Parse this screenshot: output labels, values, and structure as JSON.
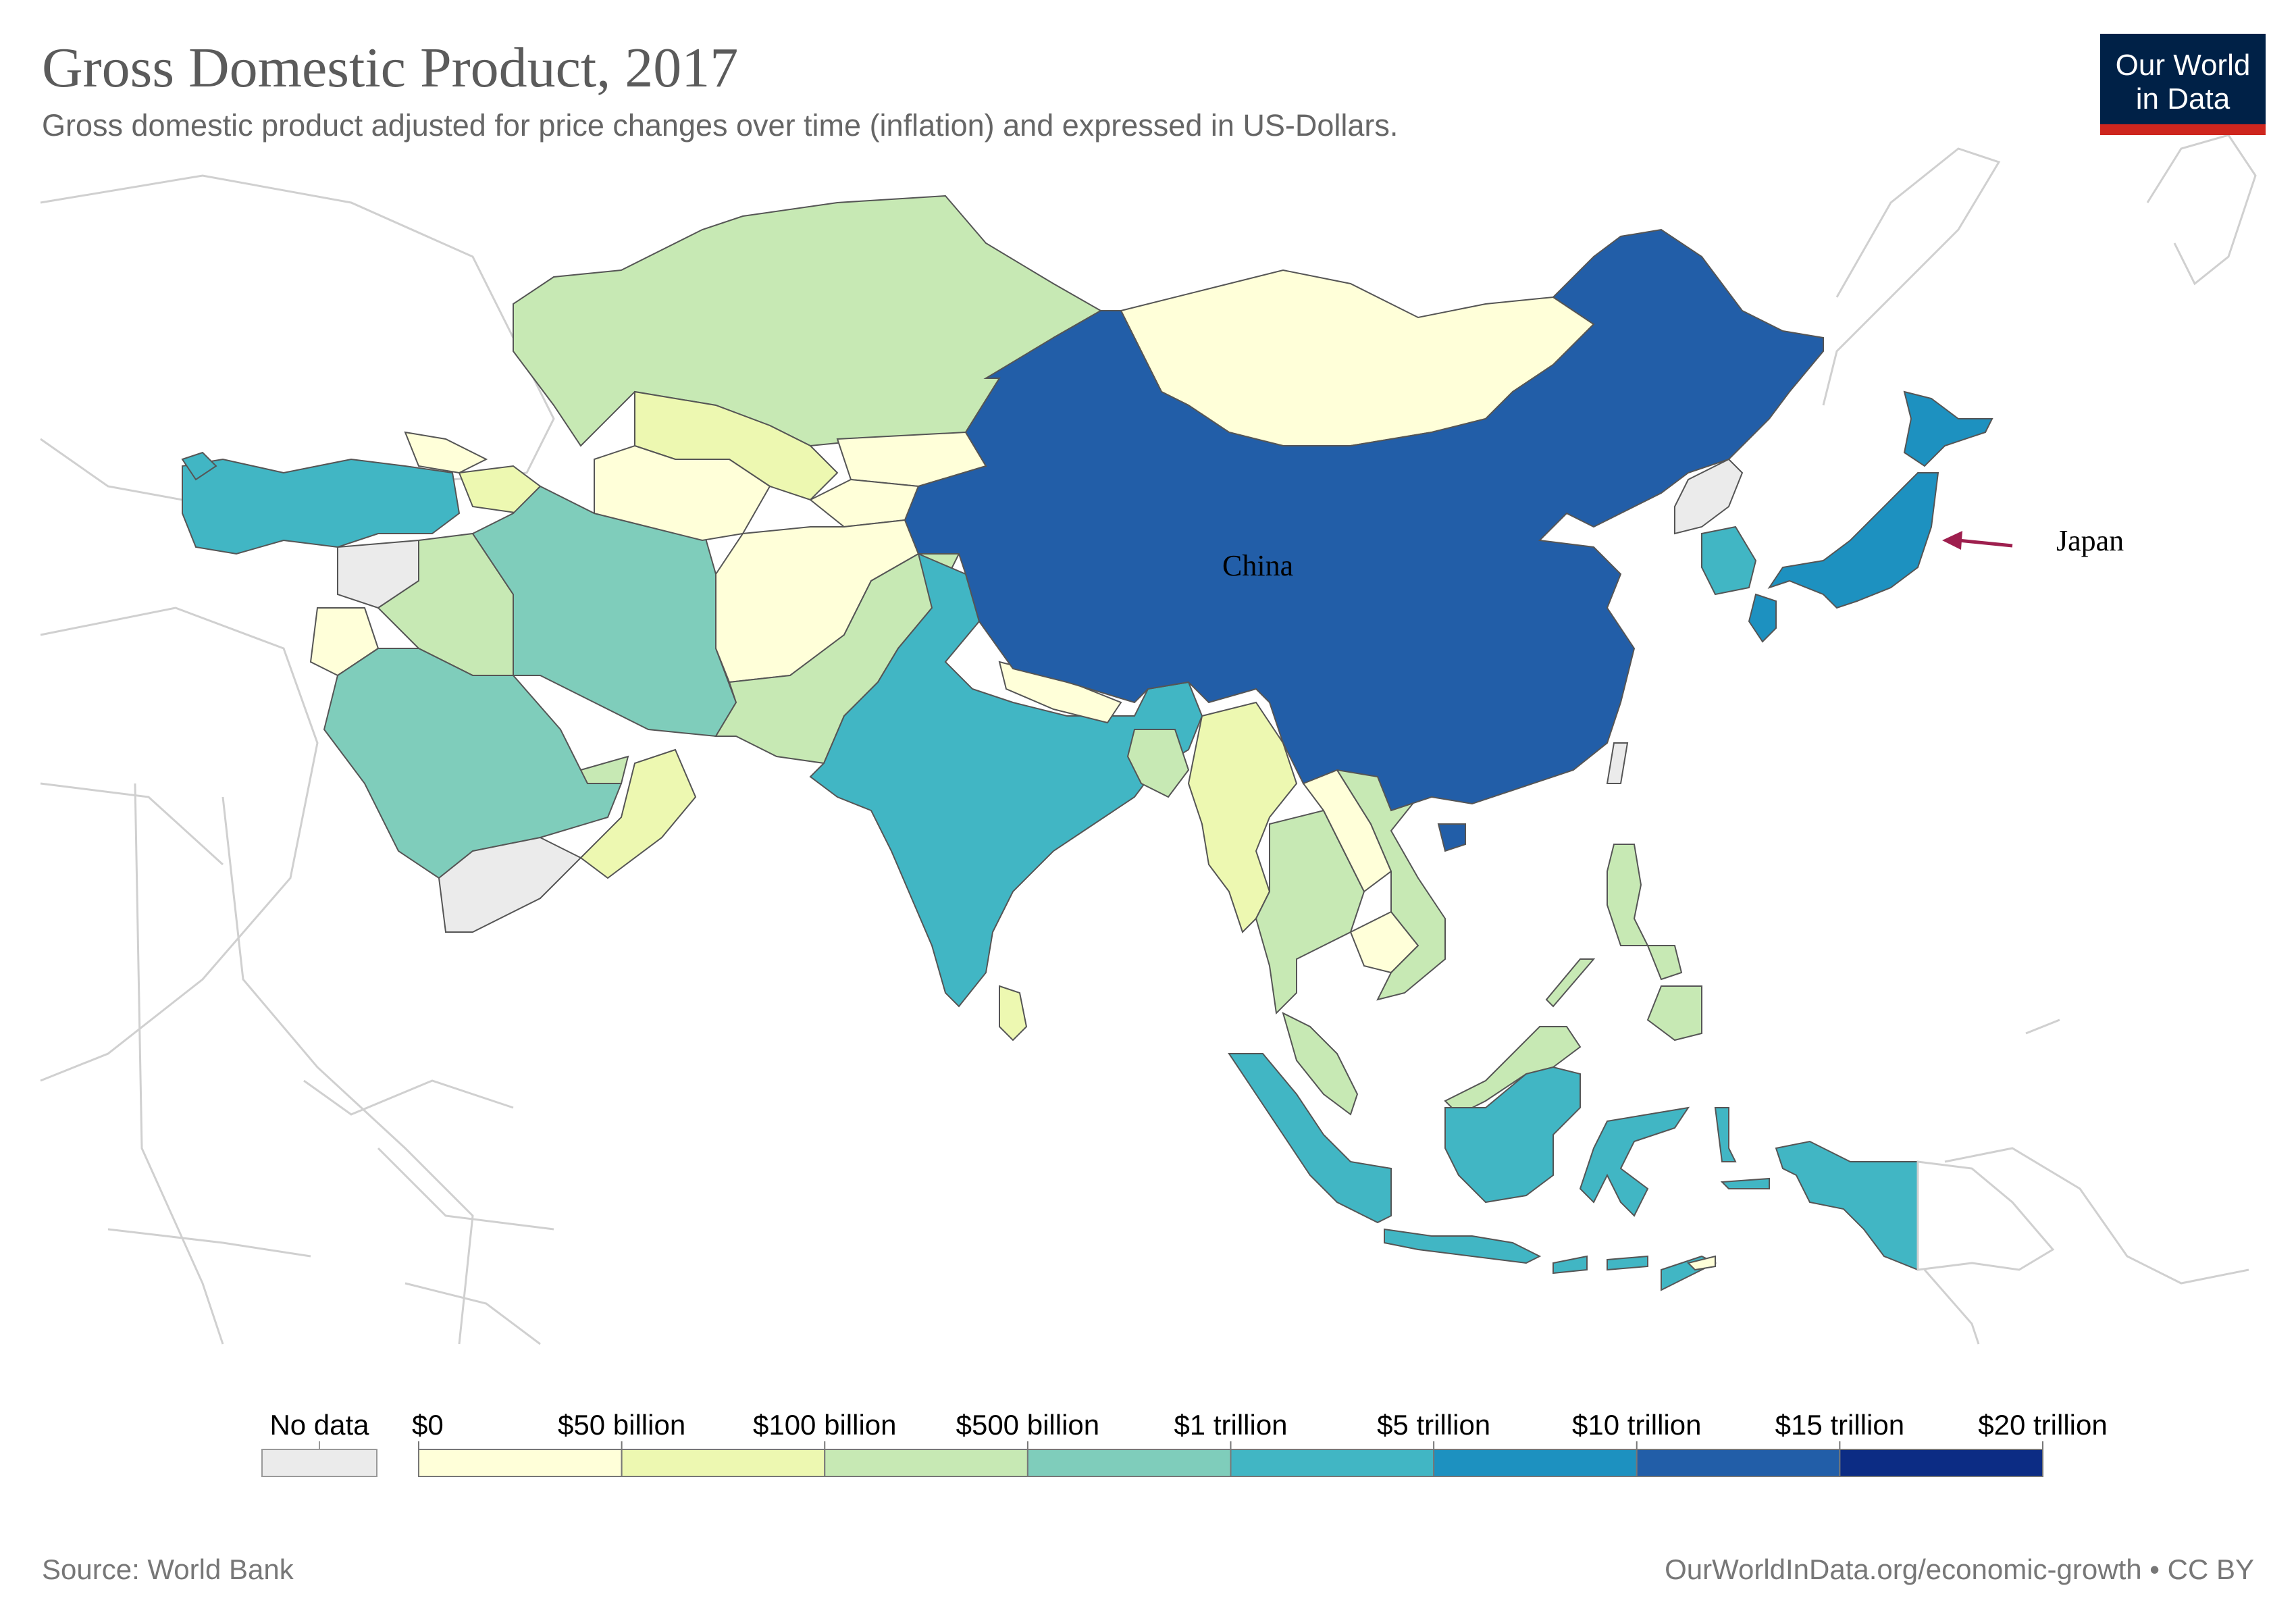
{
  "header": {
    "title": "Gross Domestic Product, 2017",
    "subtitle": "Gross domestic product adjusted for price changes over time (inflation) and expressed in US-Dollars."
  },
  "logo": {
    "line1": "Our World",
    "line2": "in Data"
  },
  "map": {
    "labels": {
      "china": "China",
      "japan": "Japan"
    },
    "colors": {
      "no_data": "#ebebeb",
      "b0": "#ffffd9",
      "b1": "#edf8b1",
      "b2": "#c7e9b4",
      "b3": "#7fcdbb",
      "b4": "#41b6c4",
      "b5": "#1d91c0",
      "b6": "#225ea8",
      "b7": "#0c2c84",
      "annotation_arrow": "#9e1f4e"
    }
  },
  "legend": {
    "no_data_label": "No data",
    "thresholds": [
      "$0",
      "$50 billion",
      "$100 billion",
      "$500 billion",
      "$1 trillion",
      "$5 trillion",
      "$10 trillion",
      "$15 trillion",
      "$20 trillion"
    ],
    "bin_colors": [
      "#ffffd9",
      "#edf8b1",
      "#c7e9b4",
      "#7fcdbb",
      "#41b6c4",
      "#1d91c0",
      "#225ea8",
      "#0c2c84"
    ]
  },
  "footer": {
    "source": "Source: World Bank",
    "url": "OurWorldInData.org/economic-growth • CC BY"
  }
}
